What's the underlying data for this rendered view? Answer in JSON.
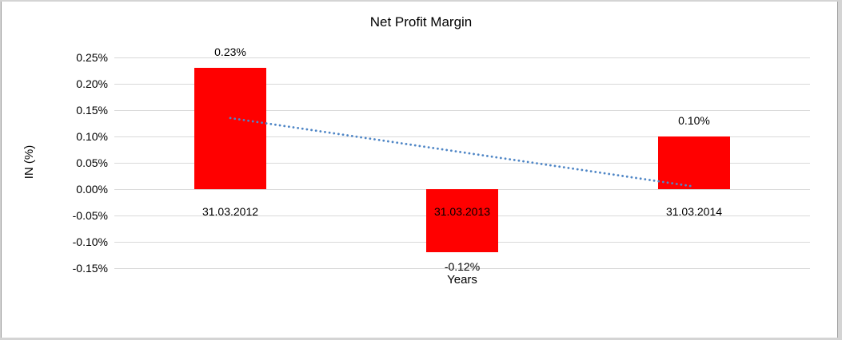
{
  "chart_data": {
    "type": "bar",
    "title": "Net Profit Margin",
    "xlabel": "Years",
    "ylabel": "IN (%)",
    "categories": [
      "31.03.2012",
      "31.03.2013",
      "31.03.2014"
    ],
    "values": [
      0.23,
      -0.12,
      0.1
    ],
    "data_labels": [
      "0.23%",
      "-0.12%",
      "0.10%"
    ],
    "yticks": [
      0.25,
      0.2,
      0.15,
      0.1,
      0.05,
      0.0,
      -0.05,
      -0.1,
      -0.15
    ],
    "ytick_labels": [
      "0.25%",
      "0.20%",
      "0.15%",
      "0.10%",
      "0.05%",
      "0.00%",
      "-0.05%",
      "-0.10%",
      "-0.15%"
    ],
    "ylim": [
      -0.15,
      0.25
    ],
    "grid": true,
    "legend": "none",
    "colors": {
      "bar": "#ff0000",
      "gridline": "#d9d9d9",
      "trendline": "#4f86c6",
      "text": "#000000",
      "frame": "#d4d4d4"
    },
    "trendline": {
      "type": "linear",
      "style": "dotted",
      "start_value": 0.135,
      "end_value": 0.005
    }
  }
}
